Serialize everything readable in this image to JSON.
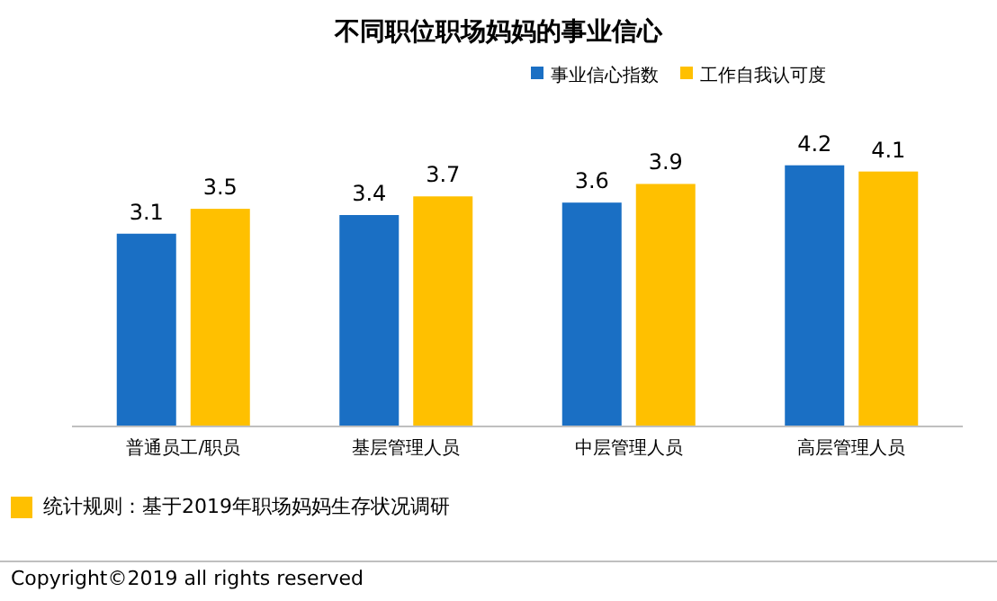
{
  "chart_data": {
    "type": "bar",
    "title": "不同职位职场妈妈的事业信心",
    "categories": [
      "普通员工/职员",
      "基层管理人员",
      "中层管理人员",
      "高层管理人员"
    ],
    "series": [
      {
        "name": "事业信心指数",
        "color": "#1a6fc4",
        "values": [
          3.1,
          3.4,
          3.6,
          4.2
        ]
      },
      {
        "name": "工作自我认可度",
        "color": "#ffc000",
        "values": [
          3.5,
          3.7,
          3.9,
          4.1
        ]
      }
    ],
    "data_labels": true,
    "legend": "top right",
    "annotations": [
      "统计规则：基于2019年职场妈妈生存状况调研",
      "Copyright©2019 all rights reserved"
    ]
  }
}
